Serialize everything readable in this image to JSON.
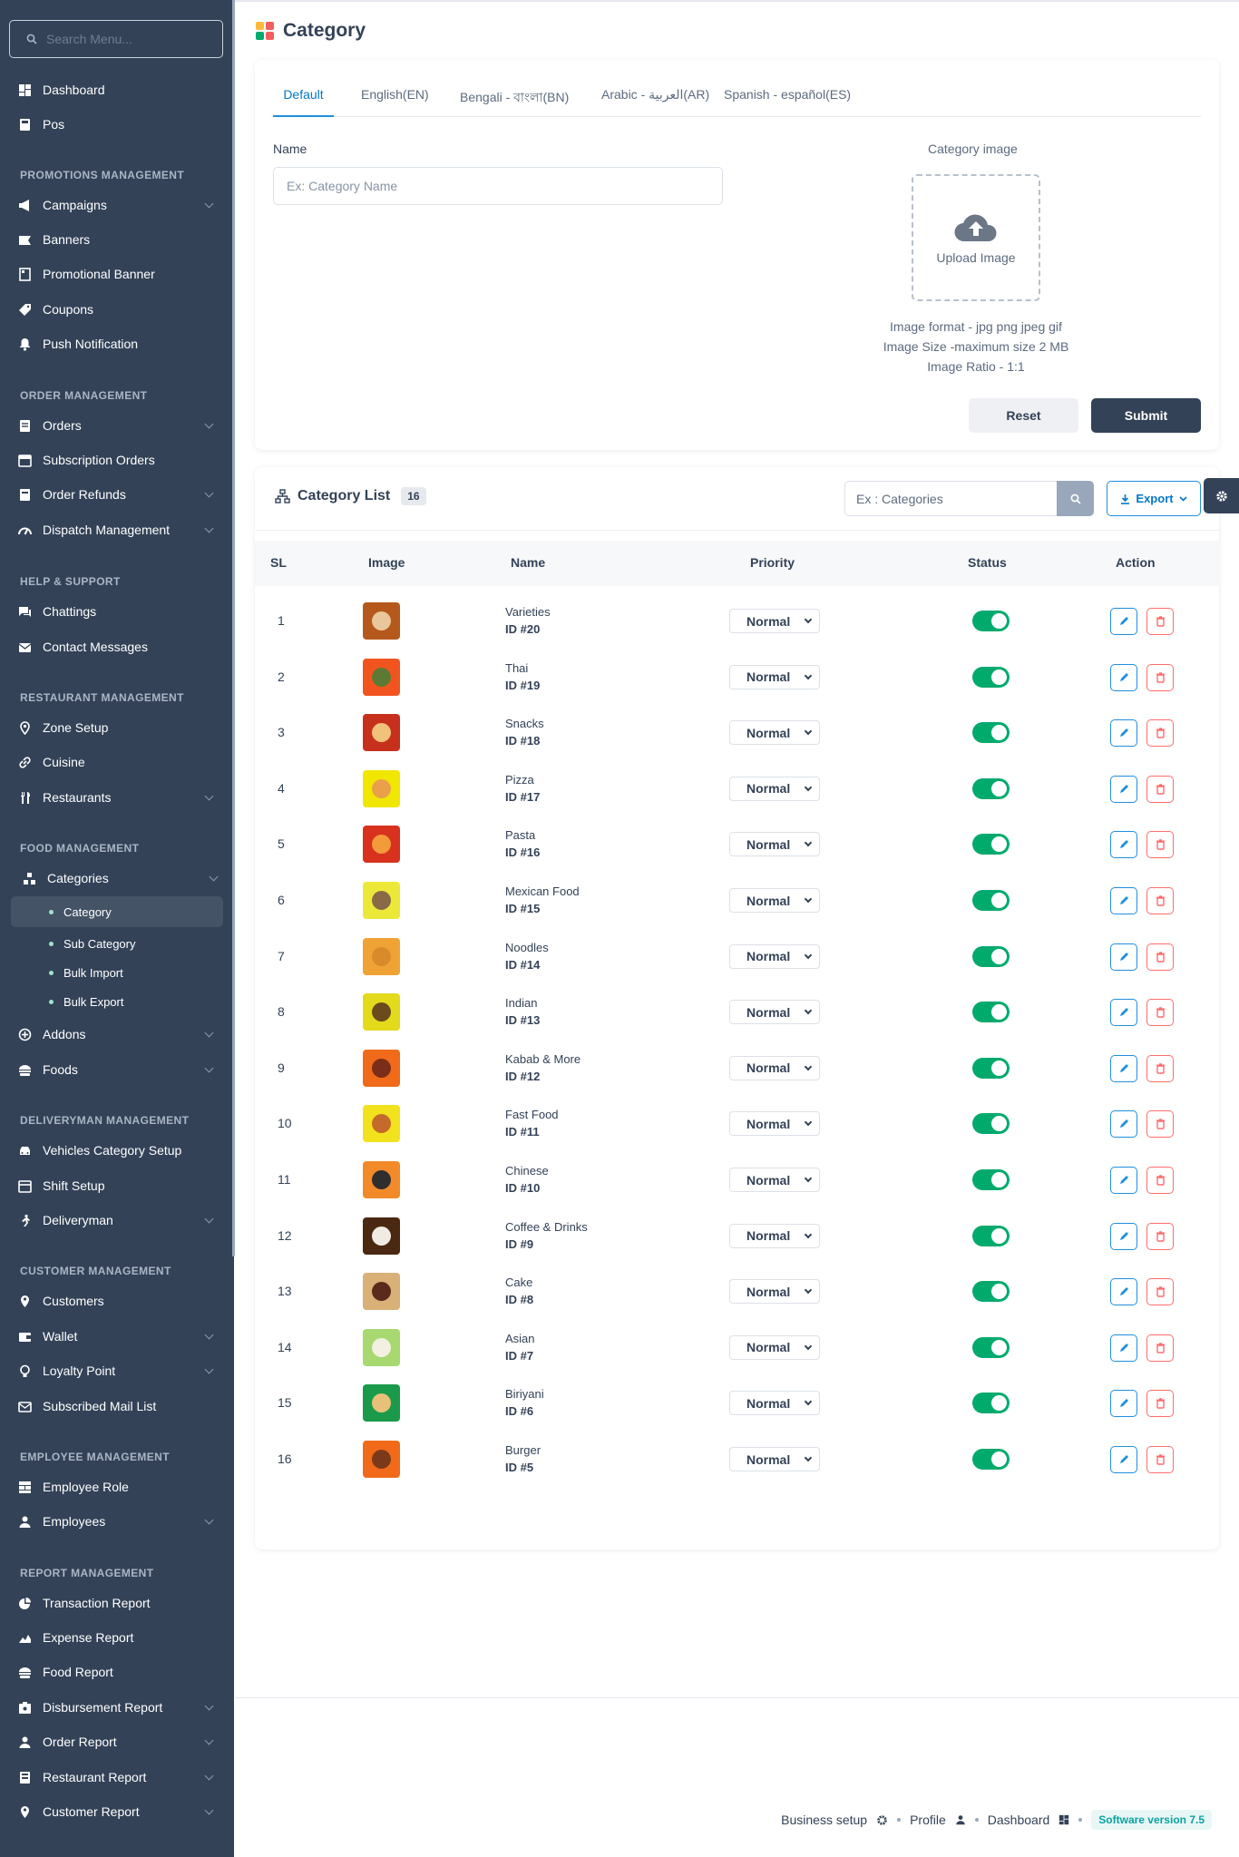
{
  "sidebar": {
    "search_placeholder": "Search Menu...",
    "items": {
      "dashboard": "Dashboard",
      "pos": "Pos",
      "campaigns": "Campaigns",
      "banners": "Banners",
      "promotional_banner": "Promotional Banner",
      "coupons": "Coupons",
      "push_notification": "Push Notification",
      "orders": "Orders",
      "subscription_orders": "Subscription Orders",
      "order_refunds": "Order Refunds",
      "dispatch_management": "Dispatch Management",
      "chattings": "Chattings",
      "contact_messages": "Contact Messages",
      "zone_setup": "Zone Setup",
      "cuisine": "Cuisine",
      "restaurants": "Restaurants",
      "categories": "Categories",
      "addons": "Addons",
      "foods": "Foods",
      "vehicles_category_setup": "Vehicles Category Setup",
      "shift_setup": "Shift Setup",
      "deliveryman": "Deliveryman",
      "customers": "Customers",
      "wallet": "Wallet",
      "loyalty_point": "Loyalty Point",
      "subscribed_mail_list": "Subscribed Mail List",
      "employee_role": "Employee Role",
      "employees": "Employees",
      "transaction_report": "Transaction Report",
      "expense_report": "Expense Report",
      "food_report": "Food Report",
      "disbursement_report": "Disbursement Report",
      "order_report": "Order Report",
      "restaurant_report": "Restaurant Report",
      "customer_report": "Customer Report"
    },
    "sub": {
      "category": "Category",
      "sub_category": "Sub Category",
      "bulk_import": "Bulk Import",
      "bulk_export": "Bulk Export"
    },
    "sections": {
      "promotions": "PROMOTIONS MANAGEMENT",
      "order": "ORDER MANAGEMENT",
      "help": "HELP & SUPPORT",
      "restaurant": "RESTAURANT MANAGEMENT",
      "food": "FOOD MANAGEMENT",
      "deliveryman": "DELIVERYMAN MANAGEMENT",
      "customer": "CUSTOMER MANAGEMENT",
      "employee": "EMPLOYEE MANAGEMENT",
      "report": "REPORT MANAGEMENT"
    }
  },
  "page": {
    "title": "Category"
  },
  "form": {
    "tabs": [
      "Default",
      "English(EN)",
      "Bengali - বাংলা(BN)",
      "Arabic - العربية(AR)",
      "Spanish - español(ES)"
    ],
    "name_label": "Name",
    "name_placeholder": "Ex: Category Name",
    "image_label": "Category image",
    "upload_text": "Upload Image",
    "image_format": "Image format - jpg png jpeg gif",
    "image_size": "Image Size -maximum size 2 MB",
    "image_ratio": "Image Ratio - 1:1",
    "reset_label": "Reset",
    "submit_label": "Submit"
  },
  "list": {
    "title": "Category List",
    "count": "16",
    "search_placeholder": "Ex : Categories",
    "export_label": "Export",
    "columns": {
      "sl": "SL",
      "image": "Image",
      "name": "Name",
      "priority": "Priority",
      "status": "Status",
      "action": "Action"
    },
    "rows": [
      {
        "sl": "1",
        "name": "Varieties",
        "id": "ID #20",
        "priority": "Normal",
        "status": true,
        "bg": "#b5581c",
        "food": "#e9c79a"
      },
      {
        "sl": "2",
        "name": "Thai",
        "id": "ID #19",
        "priority": "Normal",
        "status": true,
        "bg": "#f2541f",
        "food": "#5c7a34"
      },
      {
        "sl": "3",
        "name": "Snacks",
        "id": "ID #18",
        "priority": "Normal",
        "status": true,
        "bg": "#c8301e",
        "food": "#f1c27a"
      },
      {
        "sl": "4",
        "name": "Pizza",
        "id": "ID #17",
        "priority": "Normal",
        "status": true,
        "bg": "#f0e600",
        "food": "#e9a04a"
      },
      {
        "sl": "5",
        "name": "Pasta",
        "id": "ID #16",
        "priority": "Normal",
        "status": true,
        "bg": "#d8321e",
        "food": "#f39a3a"
      },
      {
        "sl": "6",
        "name": "Mexican Food",
        "id": "ID #15",
        "priority": "Normal",
        "status": true,
        "bg": "#ece83a",
        "food": "#8a6a46"
      },
      {
        "sl": "7",
        "name": "Noodles",
        "id": "ID #14",
        "priority": "Normal",
        "status": true,
        "bg": "#f0a335",
        "food": "#d98a2a"
      },
      {
        "sl": "8",
        "name": "Indian",
        "id": "ID #13",
        "priority": "Normal",
        "status": true,
        "bg": "#e4da1c",
        "food": "#6b4a1e"
      },
      {
        "sl": "9",
        "name": "Kabab & More",
        "id": "ID #12",
        "priority": "Normal",
        "status": true,
        "bg": "#f06a1a",
        "food": "#7a2e1a"
      },
      {
        "sl": "10",
        "name": "Fast Food",
        "id": "ID #11",
        "priority": "Normal",
        "status": true,
        "bg": "#f2e21e",
        "food": "#c46a2a"
      },
      {
        "sl": "11",
        "name": "Chinese",
        "id": "ID #10",
        "priority": "Normal",
        "status": true,
        "bg": "#f28a2a",
        "food": "#2e2e2e"
      },
      {
        "sl": "12",
        "name": "Coffee & Drinks",
        "id": "ID #9",
        "priority": "Normal",
        "status": true,
        "bg": "#4a2812",
        "food": "#f0ece4"
      },
      {
        "sl": "13",
        "name": "Cake",
        "id": "ID #8",
        "priority": "Normal",
        "status": true,
        "bg": "#d8b078",
        "food": "#5a2a1a"
      },
      {
        "sl": "14",
        "name": "Asian",
        "id": "ID #7",
        "priority": "Normal",
        "status": true,
        "bg": "#a8d870",
        "food": "#f2f0e0"
      },
      {
        "sl": "15",
        "name": "Biriyani",
        "id": "ID #6",
        "priority": "Normal",
        "status": true,
        "bg": "#1a9a4a",
        "food": "#e8c07a"
      },
      {
        "sl": "16",
        "name": "Burger",
        "id": "ID #5",
        "priority": "Normal",
        "status": true,
        "bg": "#f06a1a",
        "food": "#7a3a1a"
      }
    ]
  },
  "footer": {
    "business_setup": "Business setup",
    "profile": "Profile",
    "dashboard": "Dashboard",
    "version": "Software version 7.5"
  },
  "colors": {
    "sidebar_bg": "#334257",
    "primary": "#334257",
    "accent_blue": "#1f8fe0",
    "danger": "#ff6d6d",
    "toggle_on": "#00aa6d"
  }
}
